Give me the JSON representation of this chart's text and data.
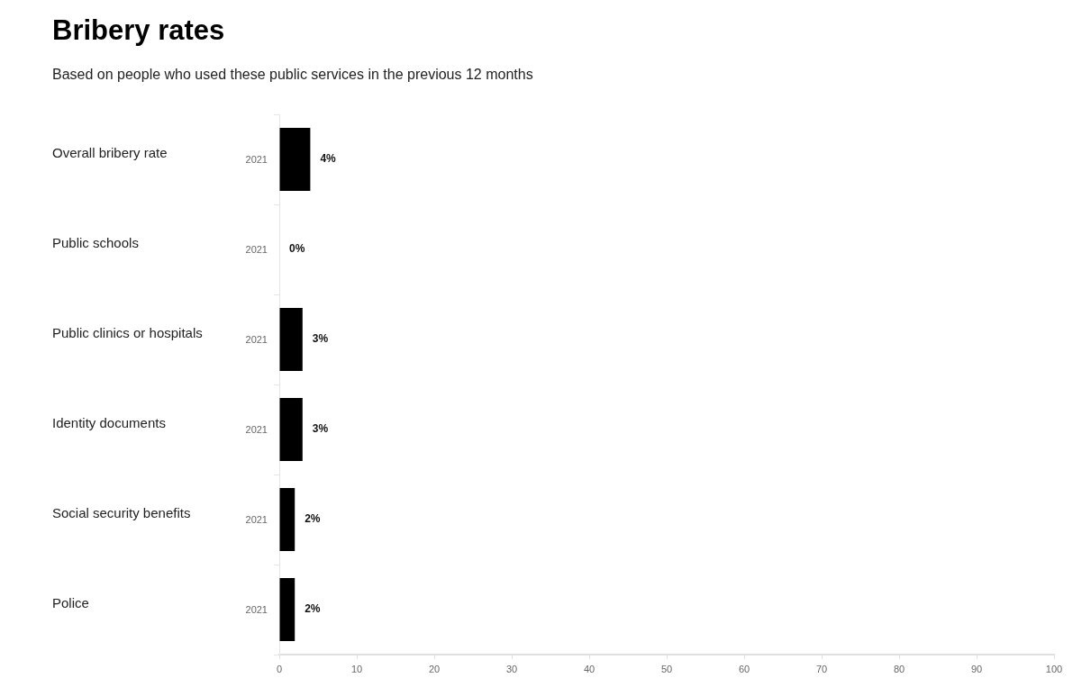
{
  "chart_data": {
    "type": "bar",
    "orientation": "horizontal",
    "title": "Bribery rates",
    "subtitle": "Based on people who used these public services in the previous 12 months",
    "categories": [
      "Overall bribery rate",
      "Public schools",
      "Public clinics or hospitals",
      "Identity documents",
      "Social security benefits",
      "Police"
    ],
    "series": [
      {
        "name": "2021",
        "color": "#000000",
        "values": [
          4,
          0,
          3,
          3,
          2,
          2
        ],
        "value_labels": [
          "4%",
          "0%",
          "3%",
          "3%",
          "2%",
          "2%"
        ]
      }
    ],
    "xlim": [
      0,
      100
    ],
    "xticks": [
      0,
      10,
      20,
      30,
      40,
      50,
      60,
      70,
      80,
      90,
      100
    ]
  }
}
